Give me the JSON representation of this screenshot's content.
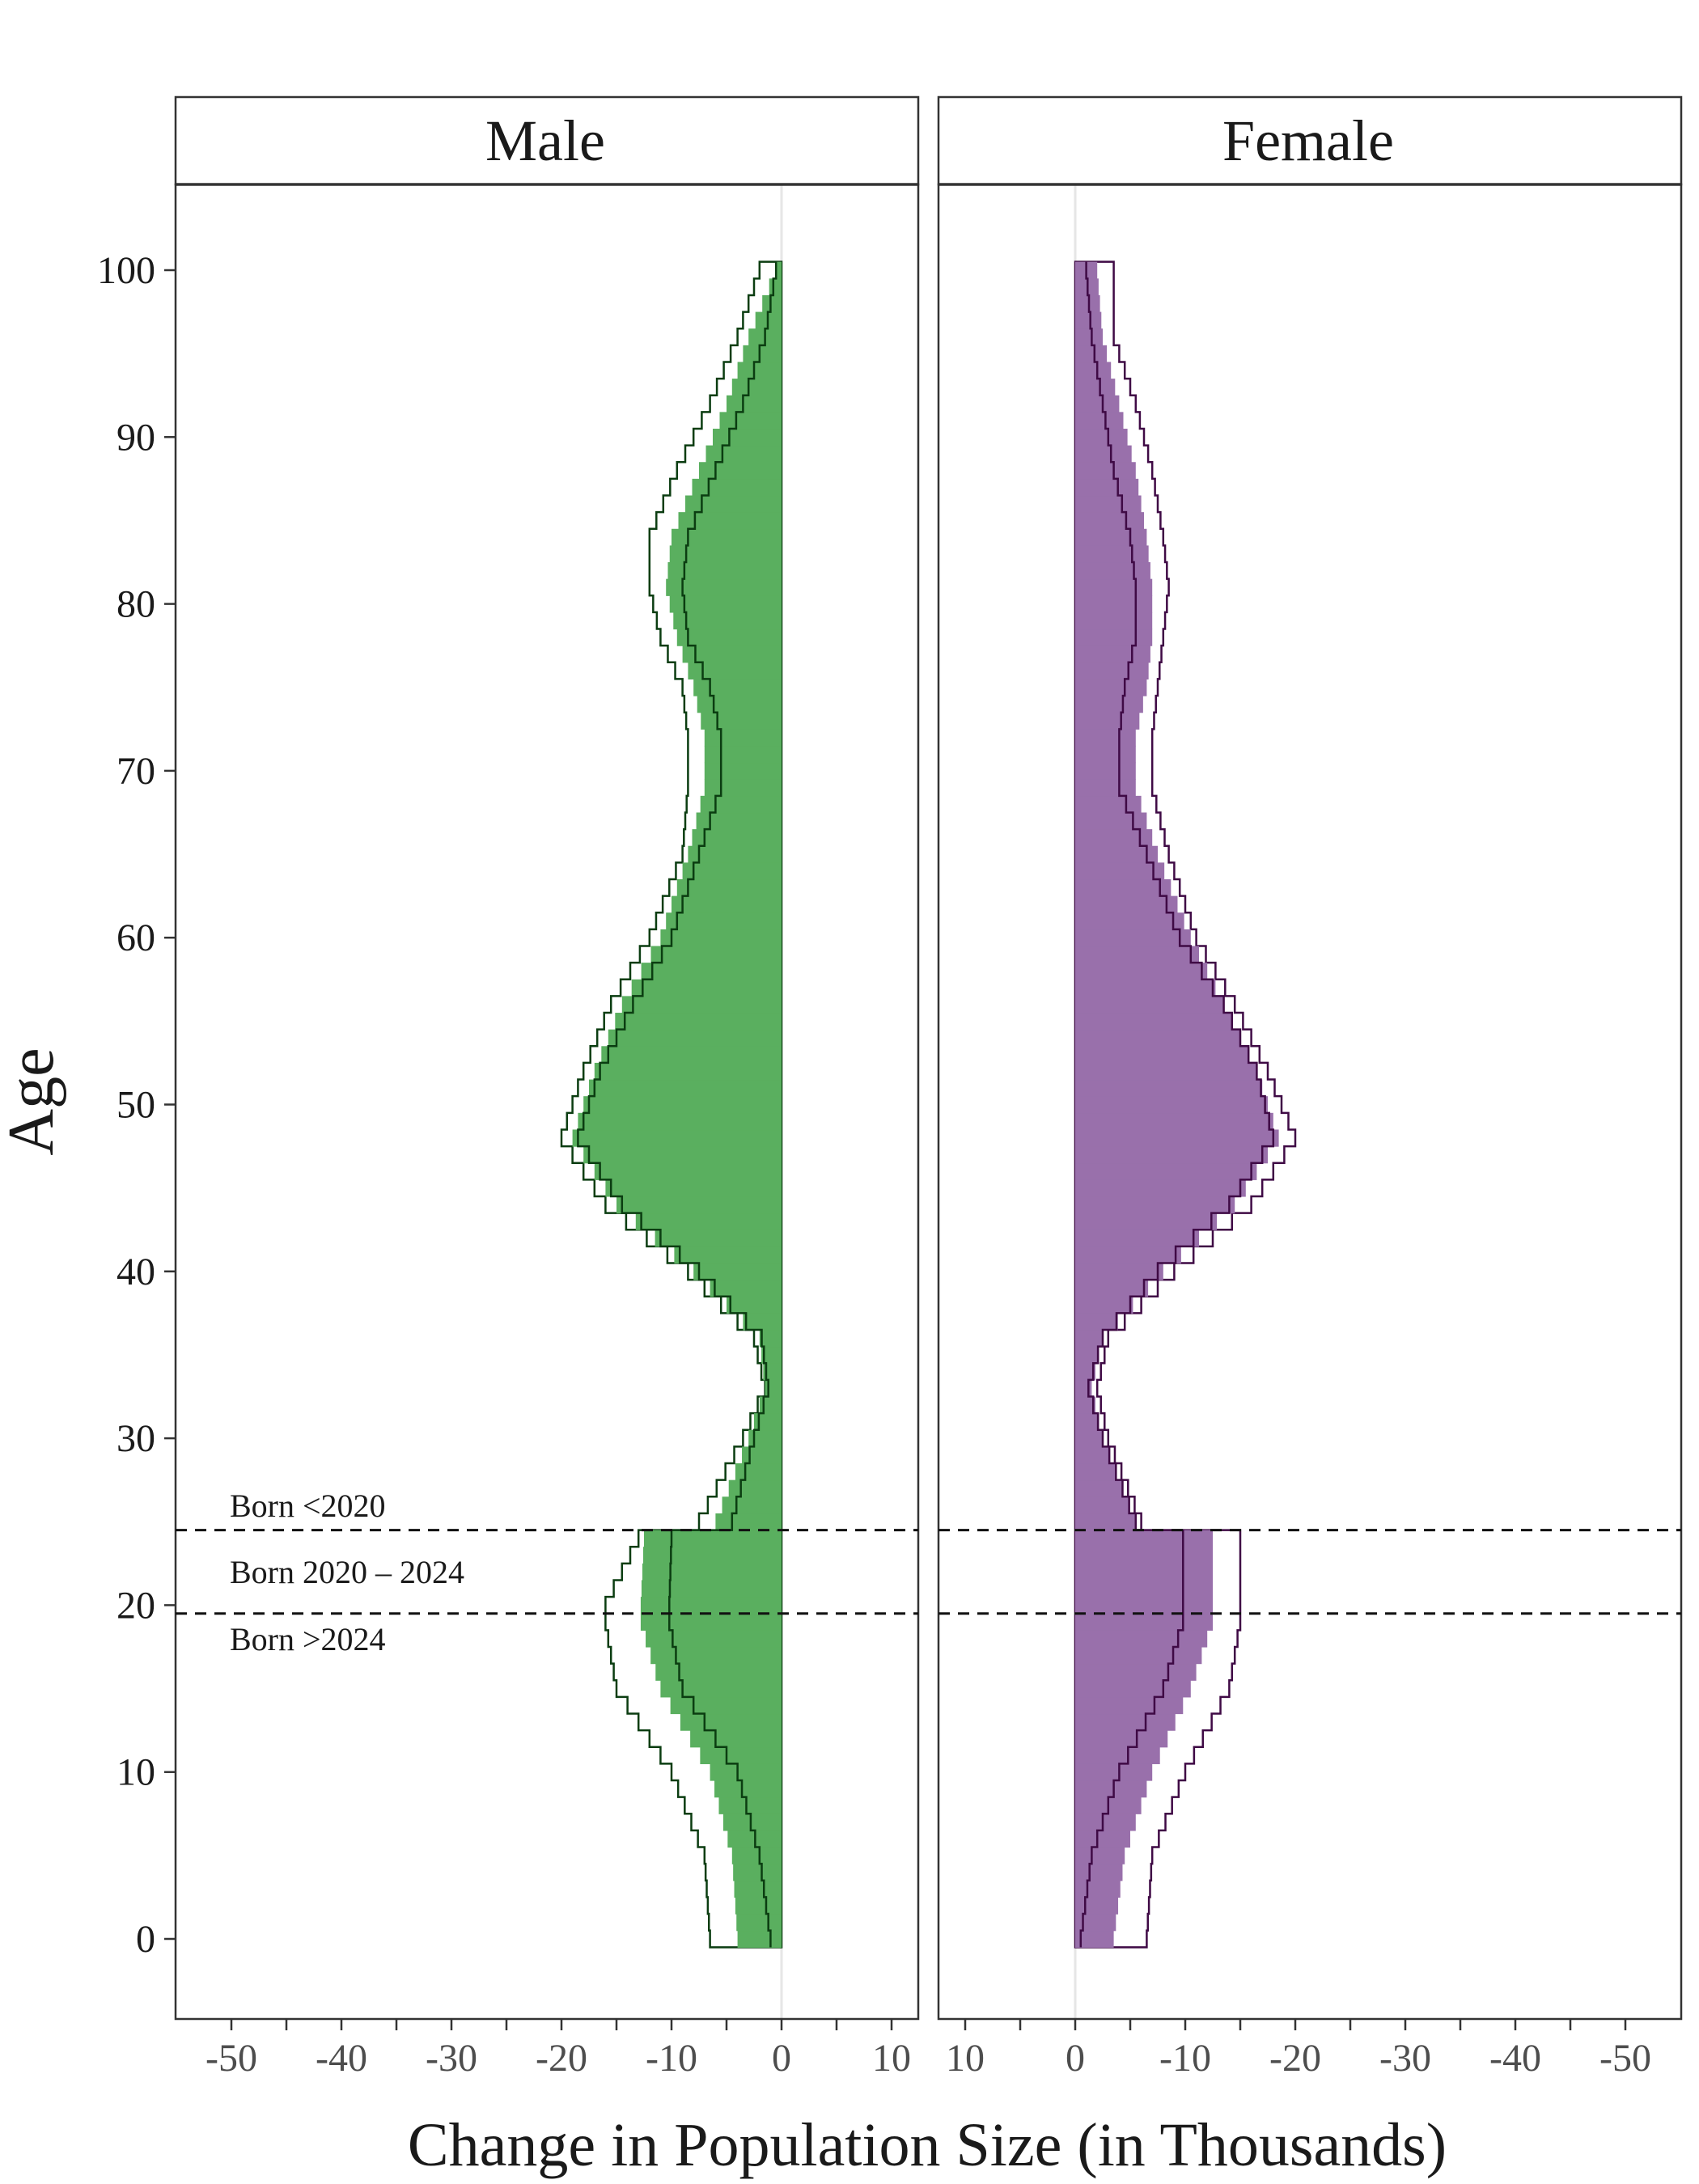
{
  "chart_data": {
    "type": "step",
    "panels": [
      {
        "name": "Male",
        "fill_color": "#5aaf5f",
        "outline_color": "#0b3d11",
        "direction": "left"
      },
      {
        "name": "Female",
        "fill_color": "#9970ab",
        "outline_color": "#3f0a45",
        "direction": "right"
      }
    ],
    "xlabel": "Change in Population Size (in Thousands)",
    "ylabel": "Age",
    "ylim": [
      -5,
      105
    ],
    "y_ticks": [
      "0",
      "10",
      "20",
      "30",
      "40",
      "50",
      "60",
      "70",
      "80",
      "90",
      "100"
    ],
    "x_ticks_male": [
      "-50",
      "-40",
      "-30",
      "-20",
      "-10",
      "0",
      "10"
    ],
    "x_ticks_female": [
      "10",
      "0",
      "-10",
      "-20",
      "-30",
      "-40",
      "-50"
    ],
    "xlim": [
      -55,
      12.5
    ],
    "cohort_lines": [
      24.5,
      19.5
    ],
    "cohort_labels": [
      "Born <2020",
      "Born 2020 – 2024",
      "Born >2024"
    ],
    "age_knots": [
      0,
      5,
      10,
      15,
      19,
      20,
      24,
      25,
      30,
      33,
      36,
      40,
      44,
      48,
      52,
      56,
      60,
      65,
      69,
      72,
      75,
      78,
      81,
      84,
      88,
      92,
      96,
      100
    ],
    "male_bar": [
      -4,
      -4.5,
      -6.5,
      -11,
      -12.8,
      -12.8,
      -12.5,
      -6,
      -3,
      -1.5,
      -2,
      -8,
      -15,
      -19,
      -17,
      -14.5,
      -11,
      -8.5,
      -7,
      -7,
      -8,
      -9.5,
      -10.5,
      -10,
      -7.5,
      -5,
      -3,
      -0.5
    ],
    "male_white": [
      -6.5,
      -7,
      -10,
      -15,
      -16,
      -16,
      -13,
      -7.5,
      -3.5,
      -1.5,
      -2.5,
      -8.5,
      -16,
      -20,
      -18,
      -15.5,
      -12,
      -9,
      -8.5,
      -8.5,
      -9,
      -11,
      -12,
      -12,
      -9.5,
      -6.5,
      -4,
      -2
    ],
    "male_line": [
      -1,
      -2,
      -4,
      -9,
      -10.2,
      -10.2,
      -10,
      -4.5,
      -2.5,
      -1.2,
      -1.8,
      -7.5,
      -14.5,
      -18.5,
      -16.5,
      -13.5,
      -10,
      -7.5,
      -5.5,
      -5.5,
      -6.5,
      -8.5,
      -9,
      -8.5,
      -6,
      -3.5,
      -1.5,
      -0.5
    ],
    "female_bar": [
      -3.5,
      -4.5,
      -7,
      -10.5,
      -12.5,
      -12.5,
      -12.5,
      -5.5,
      -2.5,
      -1.5,
      -2.5,
      -8,
      -14.5,
      -18.5,
      -16.5,
      -13.5,
      -10.5,
      -7.5,
      -5.5,
      -5.5,
      -6.5,
      -7,
      -7,
      -6.5,
      -5.5,
      -4,
      -2.5,
      -2
    ],
    "female_white": [
      -6.5,
      -7,
      -10,
      -14,
      -15,
      -15,
      -15,
      -6,
      -3,
      -2,
      -3,
      -9,
      -16,
      -20,
      -17.5,
      -14.5,
      -11,
      -8.5,
      -7,
      -7,
      -7.5,
      -8,
      -8.5,
      -8,
      -7,
      -5.5,
      -3.5,
      -3.5
    ],
    "female_line": [
      -0.5,
      -1.5,
      -4,
      -8,
      -9.8,
      -9.8,
      -9.8,
      -5.5,
      -2.5,
      -1.2,
      -2.5,
      -7.5,
      -14,
      -18,
      -16.5,
      -13.5,
      -9.5,
      -6.5,
      -4,
      -4,
      -4.5,
      -5.5,
      -5.5,
      -5,
      -3.5,
      -2.5,
      -1.5,
      -1
    ]
  }
}
